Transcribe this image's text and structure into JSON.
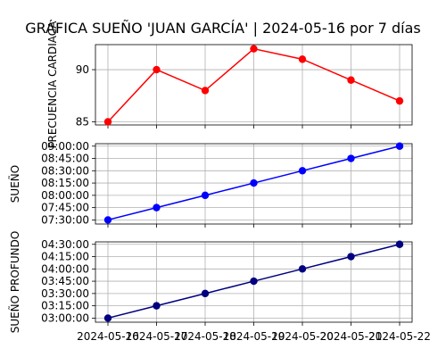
{
  "figure": {
    "title": "GRÁFICA SUEÑO 'JUAN GARCÍA' | 2024-05-16 por 7 días"
  },
  "chart_data": [
    {
      "type": "line",
      "ylabel": "FRECUENCIA CARDIACA",
      "x": [
        "2024-05-16",
        "2024-05-17",
        "2024-05-18",
        "2024-05-19",
        "2024-05-20",
        "2024-05-21",
        "2024-05-22"
      ],
      "values": [
        85,
        90,
        88,
        92,
        91,
        89,
        87
      ],
      "ylim": [
        84.7,
        92.4
      ],
      "yticks": [
        85,
        90
      ],
      "ytick_labels": [
        "85",
        "90"
      ],
      "color": "#ff0000",
      "grid": true
    },
    {
      "type": "line",
      "ylabel": "SUEÑO",
      "x": [
        "2024-05-16",
        "2024-05-17",
        "2024-05-18",
        "2024-05-19",
        "2024-05-20",
        "2024-05-21",
        "2024-05-22"
      ],
      "values": [
        "07:30:00",
        "07:45:00",
        "08:00:00",
        "08:15:00",
        "08:30:00",
        "08:45:00",
        "09:00:00"
      ],
      "ylim": [
        "07:25:00",
        "09:03:00"
      ],
      "yticks": [
        "07:30:00",
        "07:45:00",
        "08:00:00",
        "08:15:00",
        "08:30:00",
        "08:45:00",
        "09:00:00"
      ],
      "color": "#0000ff",
      "grid": true
    },
    {
      "type": "line",
      "ylabel": "SUEÑO PROFUNDO",
      "x": [
        "2024-05-16",
        "2024-05-17",
        "2024-05-18",
        "2024-05-19",
        "2024-05-20",
        "2024-05-21",
        "2024-05-22"
      ],
      "values": [
        "03:00:00",
        "03:15:00",
        "03:30:00",
        "03:45:00",
        "04:00:00",
        "04:15:00",
        "04:30:00"
      ],
      "ylim": [
        "02:55:00",
        "04:33:00"
      ],
      "yticks": [
        "03:00:00",
        "03:15:00",
        "03:30:00",
        "03:45:00",
        "04:00:00",
        "04:15:00",
        "04:30:00"
      ],
      "color": "#000080",
      "grid": true
    }
  ]
}
